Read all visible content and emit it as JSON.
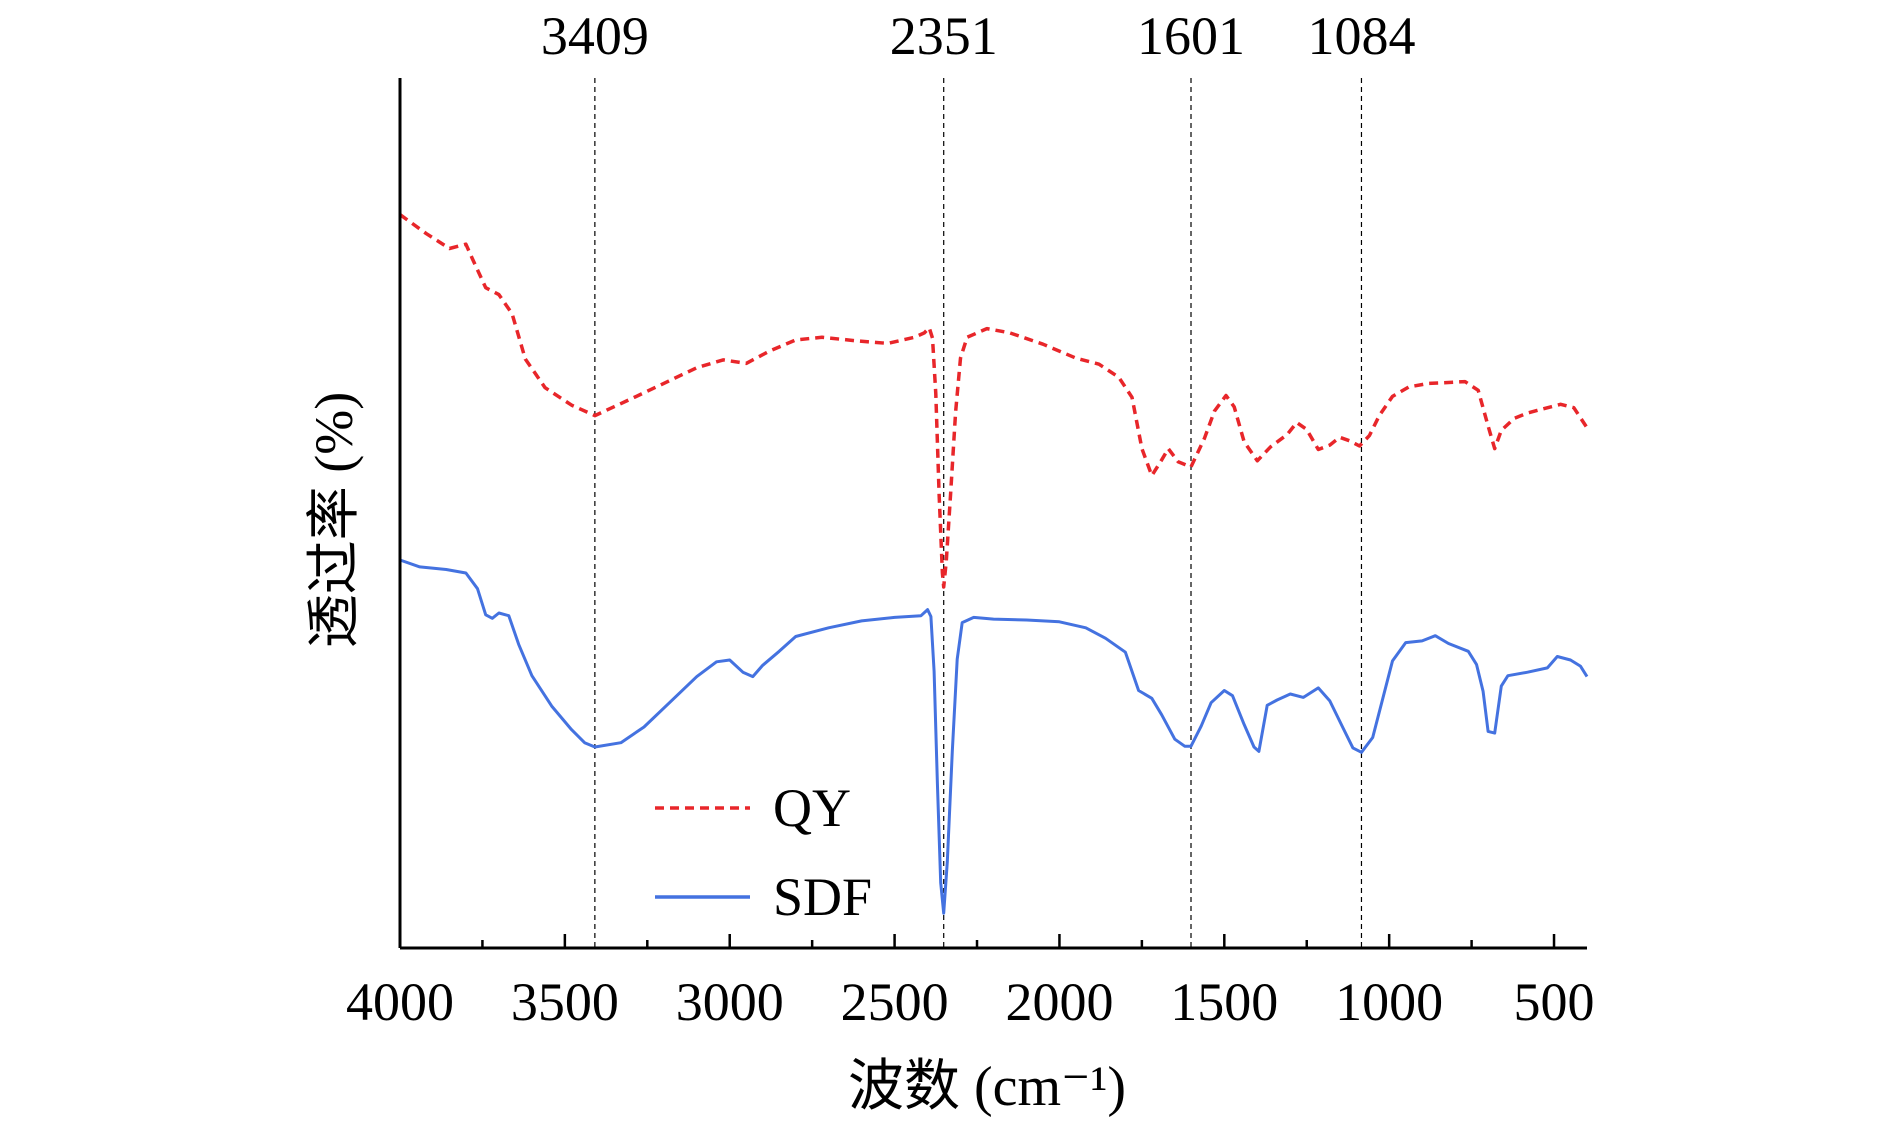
{
  "chart_data": {
    "type": "line",
    "xlabel": "波数 (cm⁻¹)",
    "ylabel": "透过率 (%)",
    "xlim": [
      4000,
      400
    ],
    "x_ticks": [
      4000,
      3500,
      3000,
      2500,
      2000,
      1500,
      1000,
      500
    ],
    "y_ticks_shown": false,
    "grid": false,
    "legend_position": "bottom-left",
    "reference_lines": [
      {
        "x": 3409,
        "label": "3409"
      },
      {
        "x": 2351,
        "label": "2351"
      },
      {
        "x": 1601,
        "label": "1601"
      },
      {
        "x": 1084,
        "label": "1084"
      }
    ],
    "series": [
      {
        "name": "QY",
        "color": "#e8262a",
        "dash": "dashed",
        "points": [
          [
            4000,
            84.3
          ],
          [
            3920,
            82.1
          ],
          [
            3850,
            80.4
          ],
          [
            3800,
            80.9
          ],
          [
            3780,
            79.2
          ],
          [
            3740,
            75.9
          ],
          [
            3700,
            75.1
          ],
          [
            3660,
            72.9
          ],
          [
            3620,
            67.7
          ],
          [
            3560,
            64.4
          ],
          [
            3480,
            62.4
          ],
          [
            3409,
            61.2
          ],
          [
            3300,
            63.1
          ],
          [
            3200,
            64.9
          ],
          [
            3100,
            66.7
          ],
          [
            3020,
            67.6
          ],
          [
            2950,
            67.2
          ],
          [
            2880,
            68.6
          ],
          [
            2800,
            69.9
          ],
          [
            2720,
            70.2
          ],
          [
            2620,
            69.8
          ],
          [
            2520,
            69.5
          ],
          [
            2440,
            70.2
          ],
          [
            2410,
            70.7
          ],
          [
            2395,
            71.3
          ],
          [
            2385,
            70.1
          ],
          [
            2375,
            63.7
          ],
          [
            2365,
            52.2
          ],
          [
            2355,
            43.1
          ],
          [
            2351,
            41.5
          ],
          [
            2343,
            44.5
          ],
          [
            2330,
            52.2
          ],
          [
            2315,
            61.6
          ],
          [
            2300,
            67.8
          ],
          [
            2280,
            70.2
          ],
          [
            2220,
            71.2
          ],
          [
            2150,
            70.7
          ],
          [
            2050,
            69.4
          ],
          [
            1950,
            67.8
          ],
          [
            1880,
            67.1
          ],
          [
            1820,
            65.6
          ],
          [
            1780,
            63.3
          ],
          [
            1750,
            57.4
          ],
          [
            1720,
            54.3
          ],
          [
            1690,
            56.1
          ],
          [
            1670,
            57.4
          ],
          [
            1640,
            55.9
          ],
          [
            1601,
            55.3
          ],
          [
            1560,
            58.6
          ],
          [
            1530,
            61.7
          ],
          [
            1495,
            63.5
          ],
          [
            1470,
            62.2
          ],
          [
            1440,
            58.2
          ],
          [
            1400,
            56.0
          ],
          [
            1360,
            57.6
          ],
          [
            1310,
            59.0
          ],
          [
            1280,
            60.4
          ],
          [
            1250,
            59.6
          ],
          [
            1215,
            57.3
          ],
          [
            1180,
            57.8
          ],
          [
            1150,
            58.7
          ],
          [
            1120,
            58.3
          ],
          [
            1090,
            57.7
          ],
          [
            1060,
            58.9
          ],
          [
            1030,
            61.2
          ],
          [
            990,
            63.4
          ],
          [
            940,
            64.5
          ],
          [
            880,
            64.9
          ],
          [
            820,
            65.0
          ],
          [
            770,
            65.1
          ],
          [
            730,
            64.1
          ],
          [
            700,
            60.0
          ],
          [
            680,
            57.4
          ],
          [
            660,
            59.5
          ],
          [
            620,
            60.9
          ],
          [
            580,
            61.5
          ],
          [
            540,
            61.9
          ],
          [
            480,
            62.5
          ],
          [
            440,
            62.1
          ],
          [
            400,
            59.8
          ]
        ]
      },
      {
        "name": "SDF",
        "color": "#4472e0",
        "dash": "solid",
        "points": [
          [
            4000,
            44.6
          ],
          [
            3940,
            43.8
          ],
          [
            3860,
            43.5
          ],
          [
            3800,
            43.1
          ],
          [
            3765,
            41.3
          ],
          [
            3740,
            38.3
          ],
          [
            3720,
            37.9
          ],
          [
            3700,
            38.5
          ],
          [
            3670,
            38.2
          ],
          [
            3640,
            34.9
          ],
          [
            3600,
            31.3
          ],
          [
            3540,
            27.8
          ],
          [
            3480,
            25.1
          ],
          [
            3440,
            23.6
          ],
          [
            3409,
            23.1
          ],
          [
            3330,
            23.6
          ],
          [
            3260,
            25.4
          ],
          [
            3180,
            28.3
          ],
          [
            3100,
            31.2
          ],
          [
            3040,
            32.9
          ],
          [
            3000,
            33.1
          ],
          [
            2960,
            31.7
          ],
          [
            2930,
            31.2
          ],
          [
            2900,
            32.5
          ],
          [
            2850,
            34.1
          ],
          [
            2800,
            35.8
          ],
          [
            2700,
            36.8
          ],
          [
            2600,
            37.6
          ],
          [
            2500,
            38.0
          ],
          [
            2420,
            38.2
          ],
          [
            2400,
            38.9
          ],
          [
            2390,
            38.1
          ],
          [
            2380,
            31.8
          ],
          [
            2370,
            18.9
          ],
          [
            2360,
            7.5
          ],
          [
            2351,
            4.0
          ],
          [
            2340,
            9.9
          ],
          [
            2325,
            22.6
          ],
          [
            2310,
            33.2
          ],
          [
            2295,
            37.4
          ],
          [
            2260,
            38.0
          ],
          [
            2200,
            37.8
          ],
          [
            2100,
            37.7
          ],
          [
            2000,
            37.5
          ],
          [
            1920,
            36.8
          ],
          [
            1860,
            35.6
          ],
          [
            1800,
            34.0
          ],
          [
            1760,
            29.6
          ],
          [
            1720,
            28.7
          ],
          [
            1690,
            26.8
          ],
          [
            1650,
            24.0
          ],
          [
            1620,
            23.2
          ],
          [
            1601,
            23.2
          ],
          [
            1570,
            25.5
          ],
          [
            1540,
            28.2
          ],
          [
            1500,
            29.6
          ],
          [
            1475,
            29.0
          ],
          [
            1440,
            25.7
          ],
          [
            1410,
            23.1
          ],
          [
            1395,
            22.6
          ],
          [
            1370,
            27.9
          ],
          [
            1340,
            28.5
          ],
          [
            1300,
            29.2
          ],
          [
            1260,
            28.8
          ],
          [
            1215,
            29.9
          ],
          [
            1180,
            28.4
          ],
          [
            1140,
            25.3
          ],
          [
            1110,
            23.0
          ],
          [
            1084,
            22.5
          ],
          [
            1050,
            24.2
          ],
          [
            1020,
            28.6
          ],
          [
            990,
            33.0
          ],
          [
            950,
            35.1
          ],
          [
            900,
            35.3
          ],
          [
            860,
            35.9
          ],
          [
            820,
            35.0
          ],
          [
            760,
            34.1
          ],
          [
            735,
            32.6
          ],
          [
            715,
            29.5
          ],
          [
            700,
            24.9
          ],
          [
            680,
            24.7
          ],
          [
            660,
            30.1
          ],
          [
            640,
            31.3
          ],
          [
            580,
            31.7
          ],
          [
            520,
            32.2
          ],
          [
            490,
            33.5
          ],
          [
            450,
            33.1
          ],
          [
            420,
            32.4
          ],
          [
            400,
            31.2
          ]
        ]
      }
    ]
  }
}
